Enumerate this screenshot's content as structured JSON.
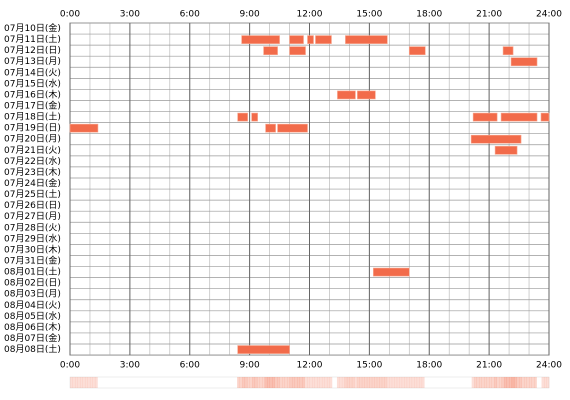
{
  "chart_data": {
    "type": "timeline",
    "xlim": [
      0,
      24
    ],
    "xticks": [
      {
        "value": 0,
        "label": "0:00"
      },
      {
        "value": 3,
        "label": "3:00"
      },
      {
        "value": 6,
        "label": "6:00"
      },
      {
        "value": 9,
        "label": "9:00"
      },
      {
        "value": 12,
        "label": "12:00"
      },
      {
        "value": 15,
        "label": "15:00"
      },
      {
        "value": 18,
        "label": "18:00"
      },
      {
        "value": 21,
        "label": "21:00"
      },
      {
        "value": 24,
        "label": "24:00"
      }
    ],
    "color": "#f26b4a",
    "days": [
      {
        "label": "07月10日(金)",
        "blocks": []
      },
      {
        "label": "07月11日(土)",
        "blocks": [
          [
            8.6,
            10.5
          ],
          [
            11.0,
            11.7
          ],
          [
            11.9,
            12.2
          ],
          [
            12.3,
            13.1
          ],
          [
            13.8,
            15.9
          ]
        ]
      },
      {
        "label": "07月12日(日)",
        "blocks": [
          [
            9.7,
            10.4
          ],
          [
            11.0,
            11.8
          ],
          [
            17.0,
            17.8
          ],
          [
            21.7,
            22.2
          ]
        ]
      },
      {
        "label": "07月13日(月)",
        "blocks": [
          [
            22.1,
            23.4
          ]
        ]
      },
      {
        "label": "07月14日(火)",
        "blocks": []
      },
      {
        "label": "07月15日(水)",
        "blocks": []
      },
      {
        "label": "07月16日(木)",
        "blocks": [
          [
            13.4,
            14.3
          ],
          [
            14.4,
            15.3
          ]
        ]
      },
      {
        "label": "07月17日(金)",
        "blocks": []
      },
      {
        "label": "07月18日(土)",
        "blocks": [
          [
            8.4,
            8.9
          ],
          [
            9.1,
            9.4
          ],
          [
            20.2,
            21.4
          ],
          [
            21.6,
            23.4
          ],
          [
            23.6,
            24.0
          ]
        ]
      },
      {
        "label": "07月19日(日)",
        "blocks": [
          [
            0,
            1.4
          ],
          [
            9.8,
            10.3
          ],
          [
            10.4,
            11.9
          ]
        ]
      },
      {
        "label": "07月20日(月)",
        "blocks": [
          [
            20.1,
            22.6
          ]
        ]
      },
      {
        "label": "07月21日(火)",
        "blocks": [
          [
            21.3,
            22.4
          ]
        ]
      },
      {
        "label": "07月22日(水)",
        "blocks": []
      },
      {
        "label": "07月23日(木)",
        "blocks": []
      },
      {
        "label": "07月24日(金)",
        "blocks": []
      },
      {
        "label": "07月25日(土)",
        "blocks": []
      },
      {
        "label": "07月26日(日)",
        "blocks": []
      },
      {
        "label": "07月27日(月)",
        "blocks": []
      },
      {
        "label": "07月28日(火)",
        "blocks": []
      },
      {
        "label": "07月29日(水)",
        "blocks": []
      },
      {
        "label": "07月30日(木)",
        "blocks": []
      },
      {
        "label": "07月31日(金)",
        "blocks": []
      },
      {
        "label": "08月01日(土)",
        "blocks": [
          [
            15.2,
            17.0
          ]
        ]
      },
      {
        "label": "08月02日(日)",
        "blocks": []
      },
      {
        "label": "08月03日(月)",
        "blocks": []
      },
      {
        "label": "08月04日(火)",
        "blocks": []
      },
      {
        "label": "08月05日(水)",
        "blocks": []
      },
      {
        "label": "08月06日(木)",
        "blocks": []
      },
      {
        "label": "08月07日(金)",
        "blocks": []
      },
      {
        "label": "08月08日(土)",
        "blocks": [
          [
            8.4,
            11.0
          ]
        ]
      }
    ]
  }
}
